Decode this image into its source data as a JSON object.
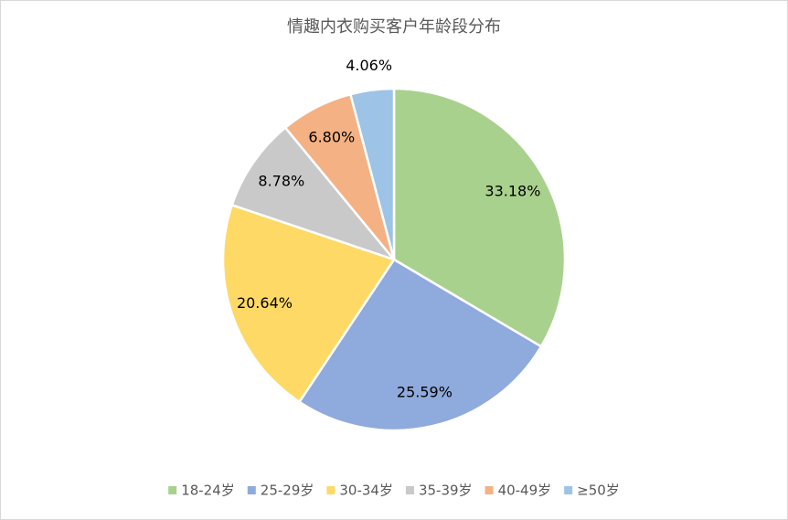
{
  "chart_data": {
    "type": "pie",
    "title": "情趣内衣购买客户年龄段分布",
    "categories": [
      "18-24岁",
      "25-29岁",
      "30-34岁",
      "35-39岁",
      "40-49岁",
      "≥50岁"
    ],
    "values": [
      33.18,
      25.59,
      20.64,
      8.78,
      6.8,
      4.06
    ],
    "value_labels": [
      "33.18%",
      "25.59%",
      "20.64%",
      "8.78%",
      "6.80%",
      "4.06%"
    ],
    "colors": [
      "#a9d18e",
      "#8faadc",
      "#ffd966",
      "#c9c9c9",
      "#f4b183",
      "#9dc3e6"
    ],
    "legend": "bottom"
  }
}
